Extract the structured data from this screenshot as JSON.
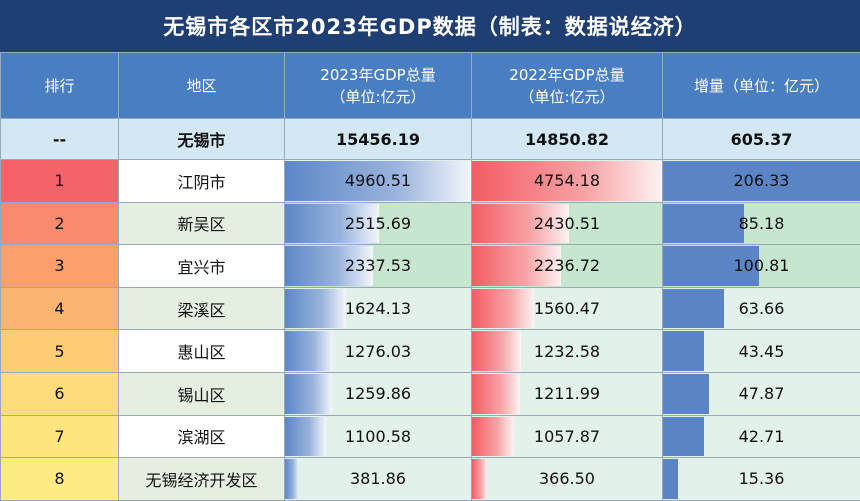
{
  "title": "无锡市各区市2023年GDP数据（制表：数据说经济）",
  "headers": {
    "rank": "排行",
    "region": "地区",
    "gdp2023": [
      "2023年GDP总量",
      "（单位:亿元）"
    ],
    "gdp2022": [
      "2022年GDP总量",
      "（单位:亿元）"
    ],
    "increase": "增量（单位：亿元）"
  },
  "total": {
    "rank": "--",
    "region": "无锡市",
    "gdp2023": "15456.19",
    "gdp2022": "14850.82",
    "increase": "605.37"
  },
  "rank_colors": [
    "#f4636a",
    "#f98a6d",
    "#fb9f6c",
    "#fcb471",
    "#fdcd76",
    "#fedc7b",
    "#ffe57e",
    "#ffeb83"
  ],
  "chart_data": {
    "type": "table",
    "title": "无锡市各区市2023年GDP数据（制表：数据说经济）",
    "columns": [
      "排行",
      "地区",
      "2023年GDP总量（单位:亿元）",
      "2022年GDP总量（单位:亿元）",
      "增量（单位：亿元）"
    ],
    "rows": [
      {
        "rank": "1",
        "region": "江阴市",
        "gdp2023": "4960.51",
        "gdp2022": "4754.18",
        "increase": "206.33"
      },
      {
        "rank": "2",
        "region": "新吴区",
        "gdp2023": "2515.69",
        "gdp2022": "2430.51",
        "increase": "85.18"
      },
      {
        "rank": "3",
        "region": "宜兴市",
        "gdp2023": "2337.53",
        "gdp2022": "2236.72",
        "increase": "100.81"
      },
      {
        "rank": "4",
        "region": "梁溪区",
        "gdp2023": "1624.13",
        "gdp2022": "1560.47",
        "increase": "63.66"
      },
      {
        "rank": "5",
        "region": "惠山区",
        "gdp2023": "1276.03",
        "gdp2022": "1232.58",
        "increase": "43.45"
      },
      {
        "rank": "6",
        "region": "锡山区",
        "gdp2023": "1259.86",
        "gdp2022": "1211.99",
        "increase": "47.87"
      },
      {
        "rank": "7",
        "region": "滨湖区",
        "gdp2023": "1100.58",
        "gdp2022": "1057.87",
        "increase": "42.71"
      },
      {
        "rank": "8",
        "region": "无锡经济开发区",
        "gdp2023": "381.86",
        "gdp2022": "366.50",
        "increase": "15.36"
      }
    ]
  }
}
